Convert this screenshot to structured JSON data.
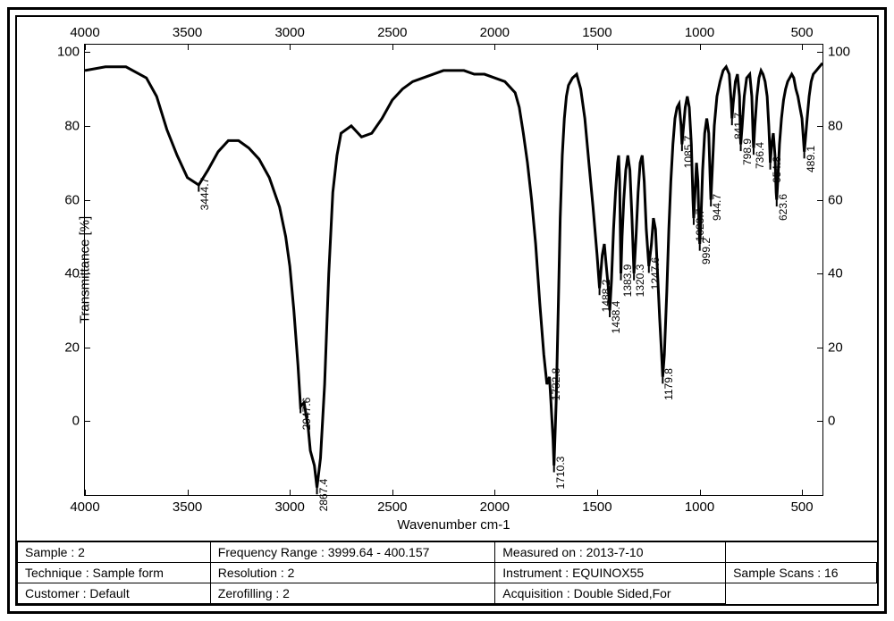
{
  "chart": {
    "type": "line",
    "x_label": "Wavenumber cm-1",
    "y_label": "Transmittance [%]",
    "x_min": 400,
    "x_max": 4000,
    "x_reversed": true,
    "y_min": -20,
    "y_max": 102,
    "x_ticks": [
      4000,
      3500,
      3000,
      2500,
      2000,
      1500,
      1000,
      500
    ],
    "y_ticks": [
      0,
      20,
      40,
      60,
      80,
      100
    ],
    "line_color": "#000000",
    "line_width": 1.2,
    "background_color": "#ffffff",
    "border_color": "#000000",
    "tick_fontsize": 15,
    "label_fontsize": 15,
    "peak_label_fontsize": 12,
    "spectrum_points": [
      [
        4000,
        95
      ],
      [
        3900,
        96
      ],
      [
        3800,
        96
      ],
      [
        3700,
        93
      ],
      [
        3650,
        88
      ],
      [
        3600,
        79
      ],
      [
        3550,
        72
      ],
      [
        3500,
        66
      ],
      [
        3444.7,
        64
      ],
      [
        3400,
        68
      ],
      [
        3350,
        73
      ],
      [
        3300,
        76
      ],
      [
        3250,
        76
      ],
      [
        3200,
        74
      ],
      [
        3150,
        71
      ],
      [
        3100,
        66
      ],
      [
        3050,
        58
      ],
      [
        3020,
        50
      ],
      [
        3000,
        42
      ],
      [
        2980,
        30
      ],
      [
        2960,
        15
      ],
      [
        2947.6,
        4
      ],
      [
        2930,
        5
      ],
      [
        2910,
        -2
      ],
      [
        2900,
        -8
      ],
      [
        2880,
        -12
      ],
      [
        2867.4,
        -18
      ],
      [
        2850,
        -10
      ],
      [
        2830,
        10
      ],
      [
        2810,
        40
      ],
      [
        2790,
        62
      ],
      [
        2770,
        72
      ],
      [
        2750,
        78
      ],
      [
        2700,
        80
      ],
      [
        2650,
        77
      ],
      [
        2600,
        78
      ],
      [
        2550,
        82
      ],
      [
        2500,
        87
      ],
      [
        2450,
        90
      ],
      [
        2400,
        92
      ],
      [
        2350,
        93
      ],
      [
        2300,
        94
      ],
      [
        2250,
        95
      ],
      [
        2200,
        95
      ],
      [
        2150,
        95
      ],
      [
        2100,
        94
      ],
      [
        2050,
        94
      ],
      [
        2000,
        93
      ],
      [
        1950,
        92
      ],
      [
        1900,
        89
      ],
      [
        1880,
        85
      ],
      [
        1860,
        78
      ],
      [
        1840,
        70
      ],
      [
        1820,
        60
      ],
      [
        1800,
        48
      ],
      [
        1780,
        32
      ],
      [
        1760,
        18
      ],
      [
        1745,
        10
      ],
      [
        1732.8,
        12
      ],
      [
        1725,
        5
      ],
      [
        1715,
        -5
      ],
      [
        1710.3,
        -12
      ],
      [
        1700,
        5
      ],
      [
        1690,
        30
      ],
      [
        1680,
        55
      ],
      [
        1670,
        72
      ],
      [
        1660,
        82
      ],
      [
        1650,
        88
      ],
      [
        1640,
        91
      ],
      [
        1620,
        93
      ],
      [
        1600,
        94
      ],
      [
        1580,
        90
      ],
      [
        1560,
        82
      ],
      [
        1540,
        70
      ],
      [
        1520,
        58
      ],
      [
        1500,
        45
      ],
      [
        1488.2,
        36
      ],
      [
        1475,
        45
      ],
      [
        1465,
        48
      ],
      [
        1455,
        42
      ],
      [
        1445,
        36
      ],
      [
        1438.4,
        30
      ],
      [
        1430,
        38
      ],
      [
        1420,
        52
      ],
      [
        1410,
        62
      ],
      [
        1400,
        70
      ],
      [
        1395,
        72
      ],
      [
        1390,
        65
      ],
      [
        1383.9,
        40
      ],
      [
        1378,
        50
      ],
      [
        1370,
        60
      ],
      [
        1360,
        68
      ],
      [
        1350,
        72
      ],
      [
        1340,
        68
      ],
      [
        1330,
        55
      ],
      [
        1320.3,
        40
      ],
      [
        1310,
        50
      ],
      [
        1300,
        62
      ],
      [
        1290,
        70
      ],
      [
        1280,
        72
      ],
      [
        1270,
        65
      ],
      [
        1260,
        52
      ],
      [
        1247.6,
        42
      ],
      [
        1235,
        48
      ],
      [
        1225,
        55
      ],
      [
        1215,
        52
      ],
      [
        1205,
        40
      ],
      [
        1195,
        28
      ],
      [
        1185,
        18
      ],
      [
        1179.8,
        12
      ],
      [
        1172,
        18
      ],
      [
        1160,
        35
      ],
      [
        1150,
        52
      ],
      [
        1140,
        65
      ],
      [
        1130,
        75
      ],
      [
        1120,
        82
      ],
      [
        1110,
        85
      ],
      [
        1100,
        86
      ],
      [
        1090,
        80
      ],
      [
        1085.7,
        75
      ],
      [
        1078,
        80
      ],
      [
        1070,
        85
      ],
      [
        1060,
        88
      ],
      [
        1050,
        85
      ],
      [
        1040,
        75
      ],
      [
        1032,
        60
      ],
      [
        1028.7,
        55
      ],
      [
        1022,
        62
      ],
      [
        1015,
        70
      ],
      [
        1008,
        65
      ],
      [
        1002,
        52
      ],
      [
        999.2,
        48
      ],
      [
        993,
        55
      ],
      [
        985,
        68
      ],
      [
        975,
        78
      ],
      [
        965,
        82
      ],
      [
        955,
        78
      ],
      [
        948,
        65
      ],
      [
        944.7,
        60
      ],
      [
        938,
        68
      ],
      [
        928,
        80
      ],
      [
        915,
        88
      ],
      [
        900,
        92
      ],
      [
        885,
        95
      ],
      [
        870,
        96
      ],
      [
        855,
        94
      ],
      [
        845,
        86
      ],
      [
        841.7,
        82
      ],
      [
        836,
        86
      ],
      [
        825,
        92
      ],
      [
        815,
        94
      ],
      [
        805,
        88
      ],
      [
        800,
        76
      ],
      [
        798.9,
        75
      ],
      [
        792,
        80
      ],
      [
        782,
        88
      ],
      [
        770,
        93
      ],
      [
        755,
        94
      ],
      [
        745,
        88
      ],
      [
        738,
        76
      ],
      [
        736.4,
        74
      ],
      [
        730,
        80
      ],
      [
        720,
        88
      ],
      [
        710,
        93
      ],
      [
        700,
        95
      ],
      [
        690,
        94
      ],
      [
        680,
        92
      ],
      [
        670,
        88
      ],
      [
        662,
        80
      ],
      [
        656,
        72
      ],
      [
        654.8,
        70
      ],
      [
        648,
        75
      ],
      [
        640,
        78
      ],
      [
        632,
        72
      ],
      [
        626,
        62
      ],
      [
        623.6,
        60
      ],
      [
        618,
        65
      ],
      [
        610,
        75
      ],
      [
        600,
        82
      ],
      [
        590,
        87
      ],
      [
        580,
        90
      ],
      [
        570,
        92
      ],
      [
        560,
        93
      ],
      [
        550,
        94
      ],
      [
        540,
        93
      ],
      [
        530,
        90
      ],
      [
        520,
        88
      ],
      [
        510,
        85
      ],
      [
        500,
        82
      ],
      [
        495,
        78
      ],
      [
        490,
        74
      ],
      [
        489.1,
        73
      ],
      [
        484,
        76
      ],
      [
        475,
        82
      ],
      [
        465,
        88
      ],
      [
        455,
        92
      ],
      [
        445,
        94
      ],
      [
        430,
        95
      ],
      [
        415,
        96
      ],
      [
        400,
        97
      ]
    ],
    "peak_labels": [
      {
        "wn": 3444.7,
        "t": 64,
        "text": "3444.7",
        "offset_y": 10
      },
      {
        "wn": 2947.6,
        "t": 4,
        "text": "2947.6",
        "offset_y": 8
      },
      {
        "wn": 2867.4,
        "t": -18,
        "text": "2867.4",
        "offset_y": 8
      },
      {
        "wn": 1732.8,
        "t": 12,
        "text": "1732.8",
        "offset_y": 8
      },
      {
        "wn": 1710.3,
        "t": -12,
        "text": "1710.3",
        "offset_y": 8
      },
      {
        "wn": 1488.2,
        "t": 36,
        "text": "1488.2",
        "offset_y": 8
      },
      {
        "wn": 1438.4,
        "t": 30,
        "text": "1438.4",
        "offset_y": 8
      },
      {
        "wn": 1383.9,
        "t": 40,
        "text": "1383.9",
        "offset_y": 8
      },
      {
        "wn": 1320.3,
        "t": 40,
        "text": "1320.3",
        "offset_y": 8
      },
      {
        "wn": 1247.6,
        "t": 42,
        "text": "1247.6",
        "offset_y": 8
      },
      {
        "wn": 1179.8,
        "t": 12,
        "text": "1179.8",
        "offset_y": 8
      },
      {
        "wn": 1085.7,
        "t": 75,
        "text": "1085.7",
        "offset_y": 8
      },
      {
        "wn": 1028.7,
        "t": 55,
        "text": "1028.7",
        "offset_y": 8
      },
      {
        "wn": 999.2,
        "t": 48,
        "text": "999.2",
        "offset_y": 8
      },
      {
        "wn": 944.7,
        "t": 60,
        "text": "944.7",
        "offset_y": 8
      },
      {
        "wn": 841.7,
        "t": 82,
        "text": "841.7",
        "offset_y": 8
      },
      {
        "wn": 798.9,
        "t": 75,
        "text": "798.9",
        "offset_y": 8
      },
      {
        "wn": 736.4,
        "t": 74,
        "text": "736.4",
        "offset_y": 8
      },
      {
        "wn": 654.8,
        "t": 70,
        "text": "654.8",
        "offset_y": 8
      },
      {
        "wn": 623.6,
        "t": 60,
        "text": "623.6",
        "offset_y": 8
      },
      {
        "wn": 489.1,
        "t": 73,
        "text": "489.1",
        "offset_y": 8
      }
    ]
  },
  "meta": {
    "rows": [
      [
        {
          "label": "Sample :",
          "value": "2"
        },
        {
          "label": "Frequency Range :",
          "value": "3999.64 - 400.157"
        },
        {
          "label": "Measured on :",
          "value": "2013-7-10"
        }
      ],
      [
        {
          "label": "Technique :",
          "value": "Sample form"
        },
        {
          "label": "Resolution :",
          "value": "2"
        },
        {
          "label": "Instrument :",
          "value": "EQUINOX55"
        },
        {
          "label": "Sample Scans :",
          "value": "16"
        }
      ],
      [
        {
          "label": "Customer :",
          "value": "Default"
        },
        {
          "label": "Zerofilling :",
          "value": "2"
        },
        {
          "label": "Acquisition :",
          "value": "Double Sided,For"
        }
      ]
    ]
  }
}
